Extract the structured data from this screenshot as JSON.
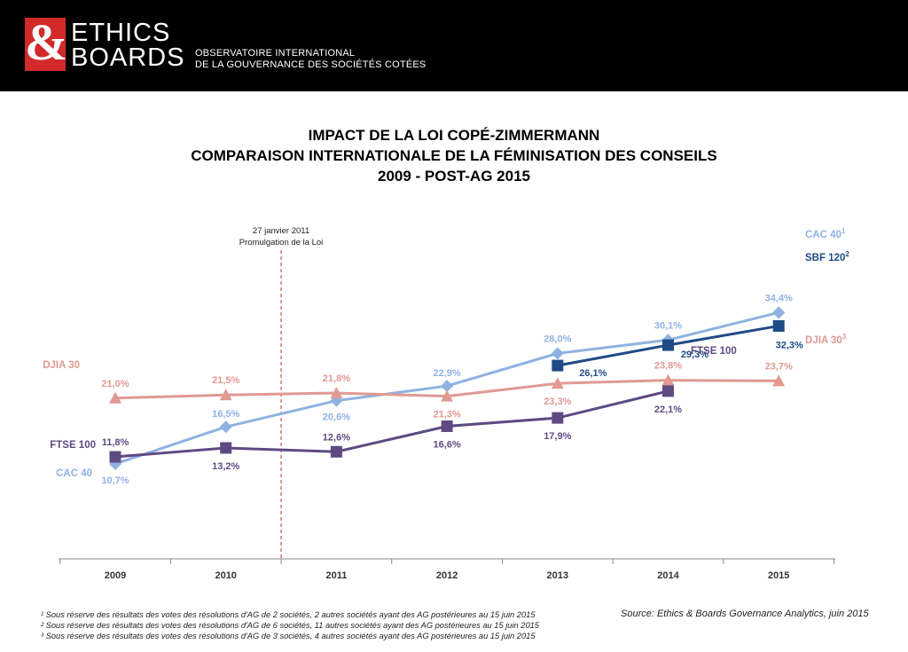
{
  "header": {
    "logo_amp": "&",
    "brand_line1": "ETHICS",
    "brand_line2": "BOARDS",
    "observatory_line1": "OBSERVATOIRE INTERNATIONAL",
    "observatory_line2": "DE LA GOUVERNANCE DES SOCIÉTÉS COTÉES"
  },
  "colors": {
    "cac40": "#8fb2e2",
    "sbf120": "#1f4a86",
    "djia30": "#e09a92",
    "ftse100": "#5e4a82",
    "header_bg": "#000000",
    "logo_red": "#d22a2a",
    "marker_line": "#d22a2a"
  },
  "chart_data": {
    "type": "line",
    "title": [
      "IMPACT DE LA LOI COPÉ-ZIMMERMANN",
      "COMPARAISON INTERNATIONALE DE LA FÉMINISATION DES CONSEILS",
      "2009 - POST-AG 2015"
    ],
    "categories": [
      "2009",
      "2010",
      "2011",
      "2012",
      "2013",
      "2014",
      "2015"
    ],
    "series": [
      {
        "key": "cac40",
        "marker": "diamond",
        "values": [
          10.7,
          16.5,
          20.6,
          22.9,
          28.0,
          30.1,
          34.4
        ],
        "labels": [
          "10,7%",
          "16,5%",
          "20,6%",
          "22,9%",
          "28,0%",
          "30,1%",
          "34,4%"
        ],
        "start_label": "CAC 40",
        "end_label": "CAC 40",
        "end_sup": "1"
      },
      {
        "key": "sbf120",
        "marker": "square",
        "values": [
          null,
          null,
          null,
          null,
          26.1,
          29.3,
          32.3
        ],
        "labels": [
          "",
          "",
          "",
          "",
          "26,1%",
          "29,3%",
          "32,3%"
        ],
        "start_label": "",
        "end_label": "SBF 120",
        "end_sup": "2"
      },
      {
        "key": "djia30",
        "marker": "triangle",
        "values": [
          21.0,
          21.5,
          21.8,
          21.3,
          23.3,
          23.8,
          23.7
        ],
        "labels": [
          "21,0%",
          "21,5%",
          "21,8%",
          "21,3%",
          "23,3%",
          "23,8%",
          "23,7%"
        ],
        "start_label": "DJIA 30",
        "end_label": "DJIA 30",
        "end_sup": "3"
      },
      {
        "key": "ftse100",
        "marker": "square",
        "values": [
          11.8,
          13.2,
          12.6,
          16.6,
          17.9,
          22.1,
          null
        ],
        "labels": [
          "11,8%",
          "13,2%",
          "12,6%",
          "16,6%",
          "17,9%",
          "22,1%",
          ""
        ],
        "start_label": "FTSE 100",
        "end_label": "FTSE 100",
        "end_sup": ""
      }
    ],
    "annotation": {
      "line1": "27 janvier 2011",
      "line2": "Promulgation de la Loi"
    },
    "grid": false,
    "legend": "inline"
  },
  "footnotes": [
    "¹ Sous réserve des résultats des votes des résolutions d'AG de 2 sociétés, 2 autres sociétés ayant des AG postérieures au 15 juin 2015",
    "² Sous réserve des résultats des votes des résolutions d'AG de 6 sociétés, 11 autres sociétés ayant des AG postérieures au 15 juin 2015",
    "³ Sous réserve des résultats des votes des résolutions d'AG de 3 sociétés, 4 autres sociétés ayant des AG postérieures au 15 juin 2015"
  ],
  "source": "Source: Ethics & Boards Governance Analytics, juin 2015"
}
